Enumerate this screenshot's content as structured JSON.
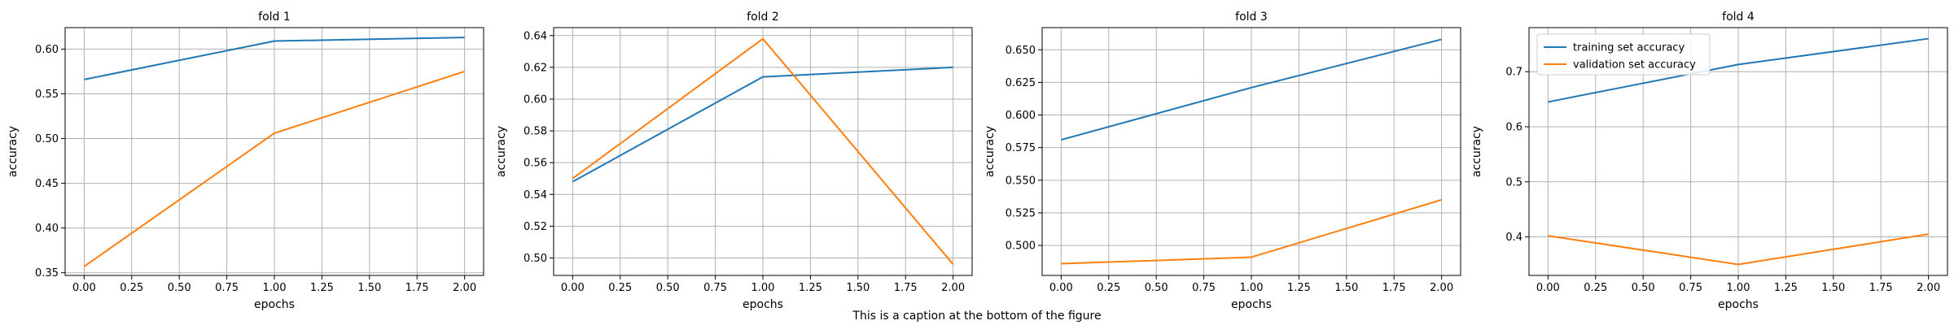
{
  "figure": {
    "caption": "This is a caption at the bottom of the figure"
  },
  "chart_data": [
    {
      "type": "line",
      "title": "fold 1",
      "xlabel": "epochs",
      "ylabel": "accuracy",
      "x": [
        0,
        1,
        2
      ],
      "xlim": [
        -0.1,
        2.1
      ],
      "ylim": [
        0.347,
        0.624
      ],
      "xticks": [
        0.0,
        0.25,
        0.5,
        0.75,
        1.0,
        1.25,
        1.5,
        1.75,
        2.0
      ],
      "yticks": [
        0.35,
        0.4,
        0.45,
        0.5,
        0.55,
        0.6
      ],
      "xtick_labels": [
        "0.00",
        "0.25",
        "0.50",
        "0.75",
        "1.00",
        "1.25",
        "1.50",
        "1.75",
        "2.00"
      ],
      "ytick_labels": [
        "0.35",
        "0.40",
        "0.45",
        "0.50",
        "0.55",
        "0.60"
      ],
      "grid": true,
      "series": [
        {
          "name": "training set accuracy",
          "color": "#1f77b4",
          "values": [
            0.566,
            0.609,
            0.613
          ]
        },
        {
          "name": "validation set accuracy",
          "color": "#ff7f0e",
          "values": [
            0.357,
            0.506,
            0.575
          ]
        }
      ]
    },
    {
      "type": "line",
      "title": "fold 2",
      "xlabel": "epochs",
      "ylabel": "accuracy",
      "x": [
        0,
        1,
        2
      ],
      "xlim": [
        -0.1,
        2.1
      ],
      "ylim": [
        0.489,
        0.645
      ],
      "xticks": [
        0.0,
        0.25,
        0.5,
        0.75,
        1.0,
        1.25,
        1.5,
        1.75,
        2.0
      ],
      "yticks": [
        0.5,
        0.52,
        0.54,
        0.56,
        0.58,
        0.6,
        0.62,
        0.64
      ],
      "xtick_labels": [
        "0.00",
        "0.25",
        "0.50",
        "0.75",
        "1.00",
        "1.25",
        "1.50",
        "1.75",
        "2.00"
      ],
      "ytick_labels": [
        "0.50",
        "0.52",
        "0.54",
        "0.56",
        "0.58",
        "0.60",
        "0.62",
        "0.64"
      ],
      "grid": true,
      "series": [
        {
          "name": "training set accuracy",
          "color": "#1f77b4",
          "values": [
            0.548,
            0.614,
            0.62
          ]
        },
        {
          "name": "validation set accuracy",
          "color": "#ff7f0e",
          "values": [
            0.55,
            0.638,
            0.496
          ]
        }
      ]
    },
    {
      "type": "line",
      "title": "fold 3",
      "xlabel": "epochs",
      "ylabel": "accuracy",
      "x": [
        0,
        1,
        2
      ],
      "xlim": [
        -0.1,
        2.1
      ],
      "ylim": [
        0.477,
        0.667
      ],
      "xticks": [
        0.0,
        0.25,
        0.5,
        0.75,
        1.0,
        1.25,
        1.5,
        1.75,
        2.0
      ],
      "yticks": [
        0.5,
        0.525,
        0.55,
        0.575,
        0.6,
        0.625,
        0.65
      ],
      "xtick_labels": [
        "0.00",
        "0.25",
        "0.50",
        "0.75",
        "1.00",
        "1.25",
        "1.50",
        "1.75",
        "2.00"
      ],
      "ytick_labels": [
        "0.500",
        "0.525",
        "0.550",
        "0.575",
        "0.600",
        "0.625",
        "0.650"
      ],
      "grid": true,
      "series": [
        {
          "name": "training set accuracy",
          "color": "#1f77b4",
          "values": [
            0.581,
            0.621,
            0.658
          ]
        },
        {
          "name": "validation set accuracy",
          "color": "#ff7f0e",
          "values": [
            0.486,
            0.491,
            0.535
          ]
        }
      ]
    },
    {
      "type": "line",
      "title": "fold 4",
      "xlabel": "epochs",
      "ylabel": "accuracy",
      "x": [
        0,
        1,
        2
      ],
      "xlim": [
        -0.1,
        2.1
      ],
      "ylim": [
        0.33,
        0.78
      ],
      "xticks": [
        0.0,
        0.25,
        0.5,
        0.75,
        1.0,
        1.25,
        1.5,
        1.75,
        2.0
      ],
      "yticks": [
        0.4,
        0.5,
        0.6,
        0.7
      ],
      "xtick_labels": [
        "0.00",
        "0.25",
        "0.50",
        "0.75",
        "1.00",
        "1.25",
        "1.50",
        "1.75",
        "2.00"
      ],
      "ytick_labels": [
        "0.4",
        "0.5",
        "0.6",
        "0.7"
      ],
      "grid": true,
      "legend": {
        "position": "upper-left",
        "entries": [
          "training set accuracy",
          "validation set accuracy"
        ]
      },
      "series": [
        {
          "name": "training set accuracy",
          "color": "#1f77b4",
          "values": [
            0.645,
            0.713,
            0.76
          ]
        },
        {
          "name": "validation set accuracy",
          "color": "#ff7f0e",
          "values": [
            0.402,
            0.35,
            0.405
          ]
        }
      ]
    }
  ]
}
